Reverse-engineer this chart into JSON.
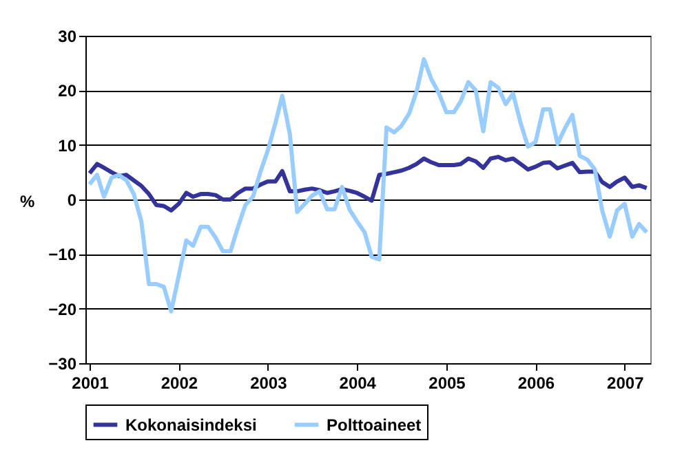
{
  "chart_data": {
    "type": "line",
    "ylabel": "%",
    "x": [
      "2001-01",
      "2001-02",
      "2001-03",
      "2001-04",
      "2001-05",
      "2001-06",
      "2001-07",
      "2001-08",
      "2001-09",
      "2001-10",
      "2001-11",
      "2001-12",
      "2002-01",
      "2002-02",
      "2002-03",
      "2002-04",
      "2002-05",
      "2002-06",
      "2002-07",
      "2002-08",
      "2002-09",
      "2002-10",
      "2002-11",
      "2002-12",
      "2003-01",
      "2003-02",
      "2003-03",
      "2003-04",
      "2003-05",
      "2003-06",
      "2003-07",
      "2003-08",
      "2003-09",
      "2003-10",
      "2003-11",
      "2003-12",
      "2004-01",
      "2004-02",
      "2004-03",
      "2004-04",
      "2004-05",
      "2004-06",
      "2004-07",
      "2004-08",
      "2004-09",
      "2004-10",
      "2004-11",
      "2004-12",
      "2005-01",
      "2005-02",
      "2005-03",
      "2005-04",
      "2005-05",
      "2005-06",
      "2005-07",
      "2005-08",
      "2005-09",
      "2005-10",
      "2005-11",
      "2005-12",
      "2006-01",
      "2006-02",
      "2006-03",
      "2006-04",
      "2006-05",
      "2006-06",
      "2006-07",
      "2006-08",
      "2006-09",
      "2006-10",
      "2006-11",
      "2006-12",
      "2007-01",
      "2007-02",
      "2007-03",
      "2007-04"
    ],
    "series": [
      {
        "name": "Kokonaisindeksi",
        "color": "#333399",
        "values": [
          4.8,
          6.5,
          5.8,
          5,
          4.3,
          4.5,
          3.5,
          2.5,
          1,
          -1,
          -1.2,
          -2,
          -0.8,
          1.2,
          0.5,
          1,
          1,
          0.8,
          0,
          0,
          1.2,
          2,
          2,
          2.7,
          3.3,
          3.3,
          5.2,
          1.5,
          1.5,
          1.8,
          2,
          1.7,
          1.2,
          1.5,
          1.9,
          1.6,
          1.2,
          0.5,
          -0.2,
          4.5,
          4.7,
          5,
          5.3,
          5.8,
          6.5,
          7.5,
          6.8,
          6.3,
          6.3,
          6.3,
          6.5,
          7.5,
          7,
          5.8,
          7.5,
          7.8,
          7.2,
          7.5,
          6.5,
          5.5,
          6,
          6.7,
          6.8,
          5.7,
          6.2,
          6.7,
          5,
          5.1,
          5.1,
          3.2,
          2.3,
          3.3,
          4,
          2.3,
          2.6,
          2.1
        ]
      },
      {
        "name": "Polttoaineet",
        "color": "#99ccff",
        "values": [
          2.8,
          4.5,
          0.5,
          4,
          4.5,
          3.5,
          1,
          -4,
          -15.5,
          -15.5,
          -16,
          -20.5,
          -14,
          -7.5,
          -8.5,
          -5,
          -5,
          -7,
          -9.5,
          -9.5,
          -5,
          -1,
          0.5,
          5,
          9,
          14,
          19,
          12,
          -2.3,
          -0.8,
          0.7,
          1.5,
          -1.8,
          -1.8,
          2.3,
          -1.8,
          -4,
          -6,
          -10.5,
          -11,
          13.2,
          12.3,
          13.5,
          15.7,
          19.8,
          25.7,
          22,
          19.5,
          16,
          16,
          18,
          21.5,
          20,
          12.5,
          21.5,
          20.5,
          17.5,
          19.4,
          14,
          9.7,
          10.5,
          16.5,
          16.5,
          10.2,
          13,
          15.5,
          8,
          7.3,
          5.5,
          -2,
          -6.8,
          -2,
          -0.8,
          -6.8,
          -4.5,
          -6
        ]
      }
    ],
    "xlim": [
      "2000-12-15",
      "2007-04-16"
    ],
    "xticks": [
      {
        "value": "2001-01",
        "label": "2001"
      },
      {
        "value": "2002-01",
        "label": "2002"
      },
      {
        "value": "2003-01",
        "label": "2003"
      },
      {
        "value": "2004-01",
        "label": "2004"
      },
      {
        "value": "2005-01",
        "label": "2005"
      },
      {
        "value": "2006-01",
        "label": "2006"
      },
      {
        "value": "2007-01",
        "label": "2007"
      }
    ],
    "ylim": [
      -30,
      30
    ],
    "yticks": [
      -30,
      -20,
      -10,
      0,
      10,
      20,
      30
    ],
    "grid": "y",
    "legend": "bottom",
    "marker": "none",
    "line_style": "solid"
  }
}
